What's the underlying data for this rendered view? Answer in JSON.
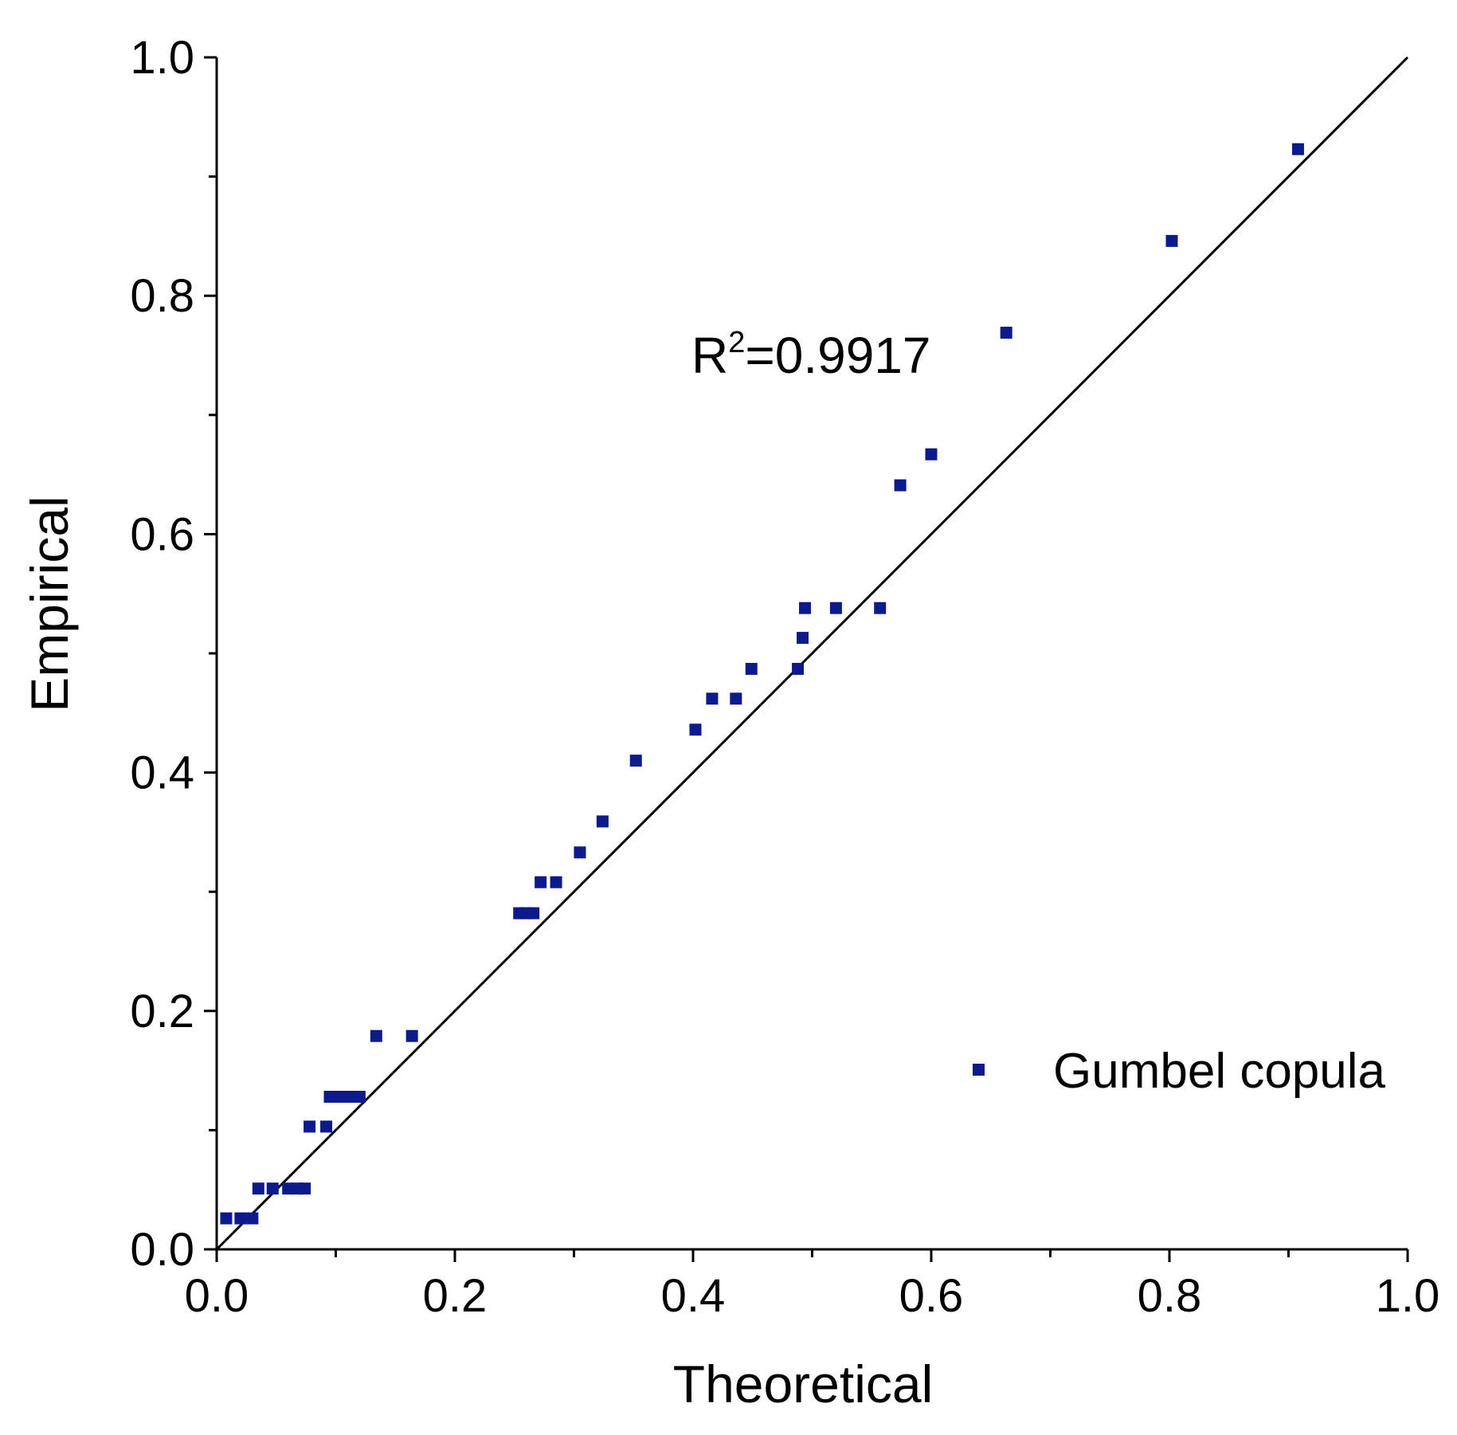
{
  "chart_data": {
    "type": "scatter",
    "title": "",
    "xlabel": "Theoretical",
    "ylabel": "Empirical",
    "xlim": [
      0.0,
      1.0
    ],
    "ylim": [
      0.0,
      1.0
    ],
    "xticks": [
      "0.0",
      "0.2",
      "0.4",
      "0.6",
      "0.8",
      "1.0"
    ],
    "yticks": [
      "0.0",
      "0.2",
      "0.4",
      "0.6",
      "0.8",
      "1.0"
    ],
    "grid": false,
    "legend_position": "bottom-right",
    "annotation": {
      "text_base": "R",
      "superscript": "2",
      "text_rest": "=0.9917"
    },
    "reference_line": {
      "from": [
        0,
        0
      ],
      "to": [
        1,
        1
      ]
    },
    "series": [
      {
        "name": "Gumbel copula",
        "color": "#0d1a8c",
        "marker": "square",
        "points": [
          [
            0.008,
            0.026
          ],
          [
            0.02,
            0.026
          ],
          [
            0.03,
            0.026
          ],
          [
            0.035,
            0.051
          ],
          [
            0.047,
            0.051
          ],
          [
            0.06,
            0.051
          ],
          [
            0.068,
            0.051
          ],
          [
            0.074,
            0.051
          ],
          [
            0.078,
            0.103
          ],
          [
            0.092,
            0.103
          ],
          [
            0.095,
            0.128
          ],
          [
            0.102,
            0.128
          ],
          [
            0.108,
            0.128
          ],
          [
            0.114,
            0.128
          ],
          [
            0.12,
            0.128
          ],
          [
            0.134,
            0.179
          ],
          [
            0.164,
            0.179
          ],
          [
            0.254,
            0.282
          ],
          [
            0.26,
            0.282
          ],
          [
            0.266,
            0.282
          ],
          [
            0.272,
            0.308
          ],
          [
            0.285,
            0.308
          ],
          [
            0.305,
            0.333
          ],
          [
            0.324,
            0.359
          ],
          [
            0.352,
            0.41
          ],
          [
            0.402,
            0.436
          ],
          [
            0.416,
            0.462
          ],
          [
            0.436,
            0.462
          ],
          [
            0.449,
            0.487
          ],
          [
            0.488,
            0.487
          ],
          [
            0.492,
            0.513
          ],
          [
            0.494,
            0.538
          ],
          [
            0.52,
            0.538
          ],
          [
            0.557,
            0.538
          ],
          [
            0.574,
            0.641
          ],
          [
            0.6,
            0.667
          ],
          [
            0.663,
            0.769
          ],
          [
            0.802,
            0.846
          ],
          [
            0.908,
            0.923
          ]
        ]
      }
    ]
  }
}
